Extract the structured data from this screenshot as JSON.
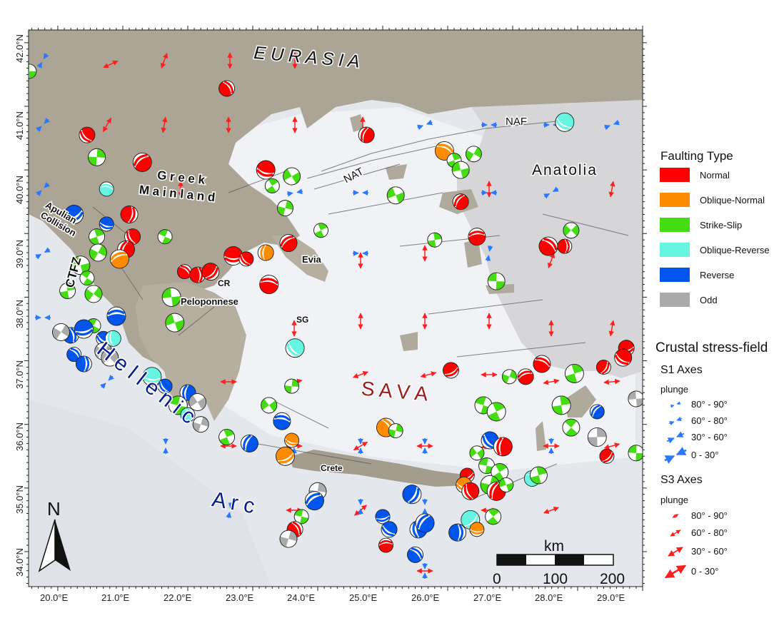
{
  "axes": {
    "lat_labels": [
      "42.0°N",
      "41.0°N",
      "40.0°N",
      "39.0°N",
      "38.0°N",
      "37.0°N",
      "36.0°N",
      "35.0°N",
      "34.0°N"
    ],
    "lon_labels": [
      "20.0°E",
      "21.0°E",
      "22.0°E",
      "23.0°E",
      "24.0°E",
      "25.0°E",
      "26.0°E",
      "27.0°E",
      "28.0°E",
      "29.0°E"
    ],
    "lat_range": [
      33.45,
      42.2
    ],
    "lon_range": [
      19.55,
      29.0
    ]
  },
  "places": {
    "eurasia": "E U R A S I A",
    "anatolia": "Anatolia",
    "greek1": "G r e e k",
    "greek2": "M a i n l a n d",
    "apulian1": "Apulian",
    "apulian2": "Collision",
    "ctfz": "CTFZ",
    "hellenic": "H e l l e n i c",
    "arc": "A r c",
    "sava": "S   A   V   A",
    "nat": "NAT",
    "naf": "NAF",
    "evia": "Evia",
    "cr": "CR",
    "peloponnese": "Peloponnese",
    "sg": "SG",
    "crete": "Crete"
  },
  "legend": {
    "faulting_title": "Faulting Type",
    "faulting_items": [
      {
        "label": "Normal",
        "color": "#ff0000"
      },
      {
        "label": "Oblique-Normal",
        "color": "#ff8c00"
      },
      {
        "label": "Strike-Slip",
        "color": "#44dd11"
      },
      {
        "label": "Oblique-Reverse",
        "color": "#66f5e0"
      },
      {
        "label": "Reverse",
        "color": "#0055ee"
      },
      {
        "label": "Odd",
        "color": "#aaaaaa"
      }
    ],
    "stress_title": "Crustal stress-field",
    "s1_title": "S1 Axes",
    "s1_plunge": "plunge",
    "s1_items": [
      "80° - 90°",
      "60° - 80°",
      "30° - 60°",
      "0 - 30°"
    ],
    "s3_title": "S3 Axes",
    "s3_plunge": "plunge",
    "s3_items": [
      "80° - 90°",
      "60° - 80°",
      "30° - 60°",
      "0 - 30°"
    ]
  },
  "scalebar": {
    "unit": "km",
    "ticks": [
      "0",
      "100",
      "200"
    ]
  },
  "north_arrow": {
    "label": "N"
  },
  "colors": {
    "land": "#b4ad9e",
    "sea": "#e6e9ee",
    "sea_light": "#f4f5f7",
    "turkey_land": "#d9d9da",
    "s1": "#2a78ff",
    "s3": "#ff1e1e",
    "arc_text": "#0a1e8c",
    "sava_text": "#9c1d1d"
  },
  "mechanisms": [
    {
      "lon": 19.56,
      "lat": 41.55,
      "type": "Strike-Slip"
    },
    {
      "lon": 20.45,
      "lat": 40.55,
      "type": "Normal"
    },
    {
      "lon": 20.6,
      "lat": 40.2,
      "type": "Strike-Slip"
    },
    {
      "lon": 21.3,
      "lat": 40.12,
      "type": "Normal"
    },
    {
      "lon": 20.75,
      "lat": 39.7,
      "type": "Oblique-Reverse"
    },
    {
      "lon": 22.6,
      "lat": 41.28,
      "type": "Normal"
    },
    {
      "lon": 21.1,
      "lat": 39.3,
      "type": "Normal"
    },
    {
      "lon": 20.25,
      "lat": 39.3,
      "type": "Reverse"
    },
    {
      "lon": 20.75,
      "lat": 39.15,
      "type": "Reverse"
    },
    {
      "lon": 21.15,
      "lat": 38.95,
      "type": "Normal"
    },
    {
      "lon": 21.05,
      "lat": 38.75,
      "type": "Normal"
    },
    {
      "lon": 20.95,
      "lat": 38.6,
      "type": "Oblique-Normal"
    },
    {
      "lon": 21.65,
      "lat": 38.95,
      "type": "Strike-Slip"
    },
    {
      "lon": 20.6,
      "lat": 38.95,
      "type": "Strike-Slip"
    },
    {
      "lon": 20.62,
      "lat": 38.7,
      "type": "Strike-Slip"
    },
    {
      "lon": 20.35,
      "lat": 38.5,
      "type": "Strike-Slip"
    },
    {
      "lon": 20.45,
      "lat": 38.3,
      "type": "Strike-Slip"
    },
    {
      "lon": 20.15,
      "lat": 38.1,
      "type": "Strike-Slip"
    },
    {
      "lon": 20.55,
      "lat": 38.05,
      "type": "Strike-Slip"
    },
    {
      "lon": 21.75,
      "lat": 38.0,
      "type": "Strike-Slip"
    },
    {
      "lon": 21.95,
      "lat": 38.4,
      "type": "Normal"
    },
    {
      "lon": 22.15,
      "lat": 38.35,
      "type": "Normal"
    },
    {
      "lon": 22.35,
      "lat": 38.4,
      "type": "Normal"
    },
    {
      "lon": 22.7,
      "lat": 38.65,
      "type": "Normal"
    },
    {
      "lon": 22.9,
      "lat": 38.6,
      "type": "Normal"
    },
    {
      "lon": 23.2,
      "lat": 38.7,
      "type": "Oblique-Normal"
    },
    {
      "lon": 23.55,
      "lat": 38.85,
      "type": "Normal"
    },
    {
      "lon": 23.25,
      "lat": 38.2,
      "type": "Normal"
    },
    {
      "lon": 23.3,
      "lat": 39.75,
      "type": "Strike-Slip"
    },
    {
      "lon": 23.5,
      "lat": 39.4,
      "type": "Strike-Slip"
    },
    {
      "lon": 23.6,
      "lat": 39.9,
      "type": "Strike-Slip"
    },
    {
      "lon": 23.2,
      "lat": 40.0,
      "type": "Normal"
    },
    {
      "lon": 24.05,
      "lat": 39.05,
      "type": "Strike-Slip"
    },
    {
      "lon": 24.75,
      "lat": 40.55,
      "type": "Normal"
    },
    {
      "lon": 25.2,
      "lat": 39.6,
      "type": "Strike-Slip"
    },
    {
      "lon": 25.95,
      "lat": 40.3,
      "type": "Oblique-Normal"
    },
    {
      "lon": 26.1,
      "lat": 40.15,
      "type": "Strike-Slip"
    },
    {
      "lon": 26.4,
      "lat": 40.25,
      "type": "Strike-Slip"
    },
    {
      "lon": 26.2,
      "lat": 40.0,
      "type": "Strike-Slip"
    },
    {
      "lon": 27.8,
      "lat": 40.75,
      "type": "Oblique-Reverse"
    },
    {
      "lon": 25.8,
      "lat": 38.9,
      "type": "Strike-Slip"
    },
    {
      "lon": 26.2,
      "lat": 39.5,
      "type": "Normal"
    },
    {
      "lon": 26.45,
      "lat": 38.95,
      "type": "Normal"
    },
    {
      "lon": 27.55,
      "lat": 38.8,
      "type": "Normal"
    },
    {
      "lon": 27.8,
      "lat": 38.8,
      "type": "Normal"
    },
    {
      "lon": 27.9,
      "lat": 39.05,
      "type": "Strike-Slip"
    },
    {
      "lon": 26.75,
      "lat": 38.25,
      "type": "Strike-Slip"
    },
    {
      "lon": 23.65,
      "lat": 37.2,
      "type": "Oblique-Reverse"
    },
    {
      "lon": 23.6,
      "lat": 36.6,
      "type": "Strike-Slip"
    },
    {
      "lon": 23.25,
      "lat": 36.3,
      "type": "Strike-Slip"
    },
    {
      "lon": 23.45,
      "lat": 36.05,
      "type": "Reverse"
    },
    {
      "lon": 25.05,
      "lat": 35.95,
      "type": "Oblique-Normal"
    },
    {
      "lon": 25.2,
      "lat": 35.9,
      "type": "Strike-Slip"
    },
    {
      "lon": 26.05,
      "lat": 36.85,
      "type": "Normal"
    },
    {
      "lon": 26.55,
      "lat": 36.3,
      "type": "Strike-Slip"
    },
    {
      "lon": 26.75,
      "lat": 36.2,
      "type": "Strike-Slip"
    },
    {
      "lon": 26.95,
      "lat": 36.75,
      "type": "Strike-Slip"
    },
    {
      "lon": 27.2,
      "lat": 36.75,
      "type": "Normal"
    },
    {
      "lon": 27.45,
      "lat": 36.95,
      "type": "Normal"
    },
    {
      "lon": 27.95,
      "lat": 36.8,
      "type": "Strike-Slip"
    },
    {
      "lon": 28.4,
      "lat": 36.9,
      "type": "Normal"
    },
    {
      "lon": 28.75,
      "lat": 37.2,
      "type": "Normal"
    },
    {
      "lon": 28.7,
      "lat": 37.05,
      "type": "Normal"
    },
    {
      "lon": 27.75,
      "lat": 36.3,
      "type": "Strike-Slip"
    },
    {
      "lon": 28.3,
      "lat": 36.2,
      "type": "Reverse"
    },
    {
      "lon": 28.9,
      "lat": 36.4,
      "type": "Odd"
    },
    {
      "lon": 27.9,
      "lat": 35.95,
      "type": "Strike-Slip"
    },
    {
      "lon": 28.3,
      "lat": 35.8,
      "type": "Odd"
    },
    {
      "lon": 28.45,
      "lat": 35.5,
      "type": "Normal"
    },
    {
      "lon": 28.9,
      "lat": 35.55,
      "type": "Strike-Slip"
    },
    {
      "lon": 26.65,
      "lat": 35.75,
      "type": "Reverse"
    },
    {
      "lon": 26.85,
      "lat": 35.65,
      "type": "Normal"
    },
    {
      "lon": 26.45,
      "lat": 35.55,
      "type": "Strike-Slip"
    },
    {
      "lon": 26.6,
      "lat": 35.35,
      "type": "Strike-Slip"
    },
    {
      "lon": 26.8,
      "lat": 35.25,
      "type": "Strike-Slip"
    },
    {
      "lon": 26.65,
      "lat": 35.05,
      "type": "Strike-Slip"
    },
    {
      "lon": 26.3,
      "lat": 35.2,
      "type": "Normal"
    },
    {
      "lon": 26.25,
      "lat": 35.05,
      "type": "Oblique-Normal"
    },
    {
      "lon": 26.35,
      "lat": 34.95,
      "type": "Normal"
    },
    {
      "lon": 26.75,
      "lat": 34.95,
      "type": "Normal"
    },
    {
      "lon": 26.9,
      "lat": 35.05,
      "type": "Strike-Slip"
    },
    {
      "lon": 27.3,
      "lat": 35.15,
      "type": "Oblique-Reverse"
    },
    {
      "lon": 27.4,
      "lat": 35.2,
      "type": "Strike-Slip"
    },
    {
      "lon": 25.45,
      "lat": 34.9,
      "type": "Reverse"
    },
    {
      "lon": 25.0,
      "lat": 34.55,
      "type": "Reverse"
    },
    {
      "lon": 25.1,
      "lat": 34.35,
      "type": "Reverse"
    },
    {
      "lon": 25.55,
      "lat": 34.35,
      "type": "Reverse"
    },
    {
      "lon": 25.65,
      "lat": 34.45,
      "type": "Reverse"
    },
    {
      "lon": 25.05,
      "lat": 34.1,
      "type": "Normal"
    },
    {
      "lon": 25.5,
      "lat": 33.95,
      "type": "Reverse"
    },
    {
      "lon": 26.15,
      "lat": 34.3,
      "type": "Reverse"
    },
    {
      "lon": 26.35,
      "lat": 34.5,
      "type": "Oblique-Reverse"
    },
    {
      "lon": 26.45,
      "lat": 34.35,
      "type": "Oblique-Normal"
    },
    {
      "lon": 26.7,
      "lat": 34.55,
      "type": "Strike-Slip"
    },
    {
      "lon": 24.0,
      "lat": 34.95,
      "type": "Odd"
    },
    {
      "lon": 23.95,
      "lat": 34.8,
      "type": "Reverse"
    },
    {
      "lon": 23.75,
      "lat": 34.55,
      "type": "Strike-Slip"
    },
    {
      "lon": 23.65,
      "lat": 34.35,
      "type": "Normal"
    },
    {
      "lon": 23.55,
      "lat": 34.2,
      "type": "Odd"
    },
    {
      "lon": 23.5,
      "lat": 35.5,
      "type": "Oblique-Normal"
    },
    {
      "lon": 23.6,
      "lat": 35.75,
      "type": "Oblique-Normal"
    },
    {
      "lon": 22.6,
      "lat": 35.8,
      "type": "Strike-Slip"
    },
    {
      "lon": 22.95,
      "lat": 35.7,
      "type": "Reverse"
    },
    {
      "lon": 21.8,
      "lat": 37.6,
      "type": "Strike-Slip"
    },
    {
      "lon": 20.55,
      "lat": 37.55,
      "type": "Strike-Slip"
    },
    {
      "lon": 20.2,
      "lat": 37.4,
      "type": "Reverse"
    },
    {
      "lon": 20.05,
      "lat": 37.45,
      "type": "Odd"
    },
    {
      "lon": 20.4,
      "lat": 37.5,
      "type": "Reverse"
    },
    {
      "lon": 20.7,
      "lat": 37.35,
      "type": "Reverse"
    },
    {
      "lon": 20.85,
      "lat": 37.35,
      "type": "Oblique-Reverse"
    },
    {
      "lon": 20.7,
      "lat": 37.15,
      "type": "Odd"
    },
    {
      "lon": 20.9,
      "lat": 37.7,
      "type": "Reverse"
    },
    {
      "lon": 20.25,
      "lat": 37.1,
      "type": "Reverse"
    },
    {
      "lon": 20.4,
      "lat": 36.95,
      "type": "Reverse"
    },
    {
      "lon": 20.8,
      "lat": 37.05,
      "type": "Odd"
    },
    {
      "lon": 21.45,
      "lat": 36.75,
      "type": "Oblique-Reverse"
    },
    {
      "lon": 21.65,
      "lat": 36.6,
      "type": "Reverse"
    },
    {
      "lon": 22.0,
      "lat": 36.5,
      "type": "Reverse"
    },
    {
      "lon": 22.15,
      "lat": 36.35,
      "type": "Odd"
    },
    {
      "lon": 21.85,
      "lat": 36.3,
      "type": "Strike-Slip"
    },
    {
      "lon": 22.0,
      "lat": 36.15,
      "type": "Oblique-Reverse"
    },
    {
      "lon": 22.2,
      "lat": 36.0,
      "type": "Odd"
    }
  ]
}
